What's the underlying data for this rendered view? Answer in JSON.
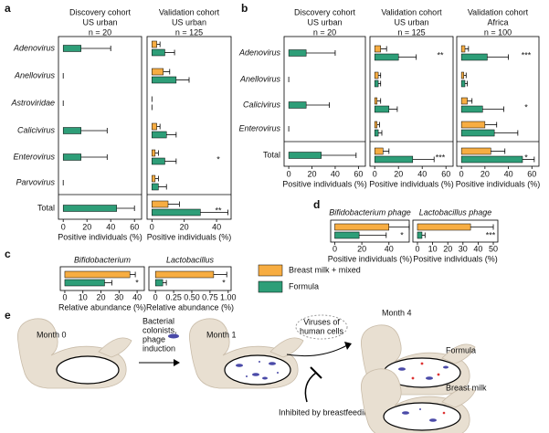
{
  "panel_labels": [
    "a",
    "b",
    "c",
    "d",
    "e"
  ],
  "chart_data": [
    {
      "type": "bar",
      "orientation": "horizontal",
      "categories": [
        "Adenovirus",
        "Anellovirus",
        "Astroviridae",
        "Calicivirus",
        "Enterovirus",
        "Parvovirus",
        "Total"
      ],
      "facets": [
        {
          "title": [
            "Discovery cohort",
            "US urban",
            "n = 20"
          ],
          "xlabel": "Positive individuals (%)",
          "xlim": [
            -4,
            66
          ],
          "xticks": [
            0,
            20,
            40,
            60
          ],
          "series": [
            {
              "name": "Formula",
              "color": "#2e9e78",
              "values": [
                15,
                0,
                0,
                15,
                15,
                0,
                45
              ],
              "errors": [
                25,
                0,
                0,
                22,
                22,
                0,
                15
              ]
            }
          ]
        },
        {
          "title": [
            "Validation cohort",
            "US urban",
            "n = 125"
          ],
          "xlabel": "Positive individuals (%)",
          "xlim": [
            -3,
            49
          ],
          "xticks": [
            0,
            20,
            40
          ],
          "series": [
            {
              "name": "Breast milk + mixed",
              "color": "#f7ad42",
              "values": [
                3,
                7,
                0,
                3,
                2,
                2,
                10
              ],
              "errors": [
                2,
                4,
                0,
                2,
                2,
                2,
                7
              ]
            },
            {
              "name": "Formula",
              "color": "#2e9e78",
              "values": [
                8,
                15,
                0,
                9,
                8,
                4,
                30
              ],
              "errors": [
                6,
                8,
                0,
                6,
                7,
                5,
                17
              ]
            }
          ],
          "annotations": [
            null,
            null,
            null,
            null,
            "*",
            null,
            "**"
          ]
        }
      ]
    },
    {
      "type": "bar",
      "orientation": "horizontal",
      "categories": [
        "Adenovirus",
        "Anellovirus",
        "Calicivirus",
        "Enterovirus",
        "Total"
      ],
      "facets": [
        {
          "title": [
            "Discovery cohort",
            "US urban",
            "n = 20"
          ],
          "xlabel": "Positive individuals (%)",
          "xlim": [
            -4,
            66
          ],
          "xticks": [
            0,
            20,
            40,
            60
          ],
          "series": [
            {
              "name": "Formula",
              "color": "#2e9e78",
              "values": [
                15,
                0,
                15,
                0,
                28
              ],
              "errors": [
                25,
                0,
                20,
                0,
                30
              ]
            }
          ]
        },
        {
          "title": [
            "Validation cohort",
            "US urban",
            "n = 125"
          ],
          "xlabel": "Positive individuals (%)",
          "xlim": [
            -4,
            66
          ],
          "xticks": [
            0,
            20,
            40,
            60
          ],
          "series": [
            {
              "name": "Breast milk + mixed",
              "color": "#f7ad42",
              "values": [
                5,
                3,
                2,
                2,
                7
              ],
              "errors": [
                5,
                2,
                3,
                2,
                5
              ]
            },
            {
              "name": "Formula",
              "color": "#2e9e78",
              "values": [
                20,
                3,
                12,
                3,
                32
              ],
              "errors": [
                15,
                2,
                7,
                3,
                18
              ]
            }
          ],
          "annotations": [
            "**",
            null,
            null,
            null,
            "***"
          ]
        },
        {
          "title": [
            "Validation cohort",
            "Africa",
            "n = 100"
          ],
          "xlabel": "Positive individuals (%)",
          "xlim": [
            -4,
            66
          ],
          "xticks": [
            0,
            20,
            40,
            60
          ],
          "series": [
            {
              "name": "Breast milk + mixed",
              "color": "#f7ad42",
              "values": [
                3,
                2,
                5,
                20,
                25
              ],
              "errors": [
                3,
                2,
                4,
                10,
                12
              ]
            },
            {
              "name": "Formula",
              "color": "#2e9e78",
              "values": [
                22,
                3,
                18,
                28,
                52
              ],
              "errors": [
                18,
                2,
                18,
                20,
                10
              ]
            }
          ],
          "annotations": [
            "***",
            null,
            "*",
            null,
            "*"
          ]
        }
      ]
    },
    {
      "type": "bar",
      "orientation": "horizontal",
      "facets": [
        {
          "title": "Bifidobacterium",
          "xlabel": "Relative abundance (%)",
          "xlim": [
            -2.5,
            44
          ],
          "xticks": [
            0,
            10,
            20,
            30,
            40
          ],
          "series": [
            {
              "name": "Breast milk + mixed",
              "color": "#f7ad42",
              "values": [
                36
              ],
              "errors": [
                3
              ]
            },
            {
              "name": "Formula",
              "color": "#2e9e78",
              "values": [
                22
              ],
              "errors": [
                4
              ]
            }
          ],
          "annotation": "*"
        },
        {
          "title": "Lactobacillus",
          "xlabel": "Relative abundance (%)",
          "xlim": [
            -0.09,
            1.04
          ],
          "xticks": [
            0,
            0.25,
            {
              "value": 0.5,
              "label": "0.50"
            },
            0.75,
            {
              "value": 1,
              "label": "1.00"
            }
          ],
          "series": [
            {
              "name": "Breast milk + mixed",
              "color": "#f7ad42",
              "values": [
                0.8
              ],
              "errors": [
                0.18
              ]
            },
            {
              "name": "Formula",
              "color": "#2e9e78",
              "values": [
                0.1
              ],
              "errors": [
                0.05
              ]
            }
          ],
          "annotation": "*"
        }
      ]
    },
    {
      "type": "bar",
      "orientation": "horizontal",
      "facets": [
        {
          "title": "Bifidobacterium phage",
          "xlabel": "Positive individuals (%)",
          "xlim": [
            -3,
            55
          ],
          "xticks": [
            0,
            20,
            40
          ],
          "series": [
            {
              "name": "Breast milk + mixed",
              "color": "#f7ad42",
              "values": [
                40
              ],
              "errors": [
                15
              ]
            },
            {
              "name": "Formula",
              "color": "#2e9e78",
              "values": [
                18
              ],
              "errors": [
                20
              ]
            }
          ],
          "annotation": "*"
        },
        {
          "title": "Lactobacillus phage",
          "xlabel": "Positive individuals (%)",
          "xlim": [
            -3,
            53
          ],
          "xticks": [
            0,
            10,
            20,
            30,
            40,
            50
          ],
          "series": [
            {
              "name": "Breast milk + mixed",
              "color": "#f7ad42",
              "values": [
                35
              ],
              "errors": [
                15
              ]
            },
            {
              "name": "Formula",
              "color": "#2e9e78",
              "values": [
                3
              ],
              "errors": [
                2
              ]
            }
          ],
          "annotation": "***"
        }
      ]
    }
  ],
  "diagram": {
    "month_0": "Month 0",
    "step_1": [
      "Bacterial",
      "colonists,",
      "phage",
      "induction"
    ],
    "month_1": "Month 1",
    "viruses": [
      "Viruses of",
      "human cells"
    ],
    "month_4": "Month 4",
    "formula": "Formula",
    "breast_milk": "Breast milk",
    "inhibited": "Inhibited by breastfeeding"
  }
}
